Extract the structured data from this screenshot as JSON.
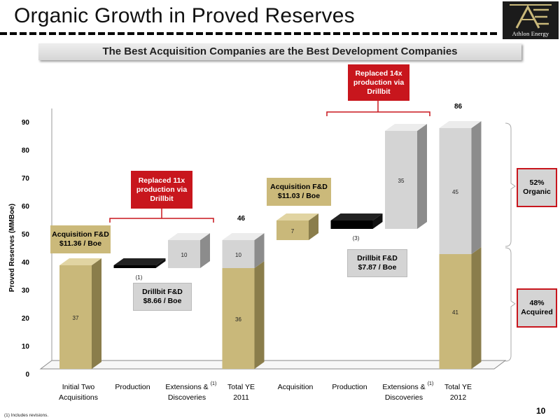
{
  "header": {
    "title": "Organic Growth in Proved Reserves",
    "logo_text": "Athlon Energy",
    "subtitle": "The Best Acquisition Companies are the Best Development Companies"
  },
  "colors": {
    "gold": "#c9b87a",
    "gold_side": "#8a7d4b",
    "gold_top": "#e1d4a2",
    "gray": "#d4d4d4",
    "gray_side": "#8c8c8c",
    "gray_top": "#ececec",
    "black": "#000000",
    "red": "#c8161d"
  },
  "chart_data": {
    "type": "bar",
    "subtype": "waterfall-3d",
    "ylabel": "Proved Reserves (MMBoe)",
    "ylim": [
      0,
      90
    ],
    "yticks": [
      0,
      10,
      20,
      30,
      40,
      50,
      60,
      70,
      80,
      90
    ],
    "categories": [
      "Initial Two\nAcquisitions",
      "Production",
      "Extensions &\nDiscoveries",
      "Total YE\n2011",
      "Acquisition",
      "Production",
      "Extensions &\nDiscoveries",
      "Total YE\n2012"
    ],
    "category_marks": [
      "",
      "",
      "(1)",
      "",
      "",
      "",
      "(1)",
      ""
    ],
    "segments": [
      {
        "category": 0,
        "base": 0,
        "value": 37,
        "label": "37",
        "color": "gold"
      },
      {
        "category": 1,
        "base": 36,
        "value": 1,
        "label": "(1)",
        "color": "black",
        "negative": true
      },
      {
        "category": 2,
        "base": 36,
        "value": 10,
        "label": "10",
        "color": "gray"
      },
      {
        "category": 3,
        "base": 0,
        "value": 36,
        "label": "36",
        "color": "gold"
      },
      {
        "category": 3,
        "base": 36,
        "value": 10,
        "label": "10",
        "color": "gray"
      },
      {
        "category": 4,
        "base": 46,
        "value": 7,
        "label": "7",
        "color": "gold"
      },
      {
        "category": 5,
        "base": 50,
        "value": 3,
        "label": "(3)",
        "color": "black",
        "negative": true
      },
      {
        "category": 6,
        "base": 50,
        "value": 35,
        "label": "35",
        "color": "gray"
      },
      {
        "category": 7,
        "base": 0,
        "value": 41,
        "label": "41",
        "color": "gold"
      },
      {
        "category": 7,
        "base": 41,
        "value": 45,
        "label": "45",
        "color": "gray"
      }
    ],
    "totals": [
      {
        "category": 3,
        "value": 46,
        "label": "46"
      },
      {
        "category": 7,
        "value": 86,
        "label": "86"
      }
    ]
  },
  "callouts": {
    "acq_fd_1": "Acquisition F&D\n$11.36 / Boe",
    "replaced_1": "Replaced 11x\nproduction via\nDrillbit",
    "drill_fd_1": "Drillbit F&D\n$8.66 / Boe",
    "acq_fd_2": "Acquisition F&D\n$11.03 / Boe",
    "replaced_2": "Replaced 14x\nproduction via\nDrillbit",
    "drill_fd_2": "Drillbit F&D\n$7.87 / Boe",
    "organic": "52%\nOrganic",
    "acquired": "48%\nAcquired"
  },
  "footer": {
    "page_number": "10",
    "footnote": "(1)     Includes revisions."
  }
}
